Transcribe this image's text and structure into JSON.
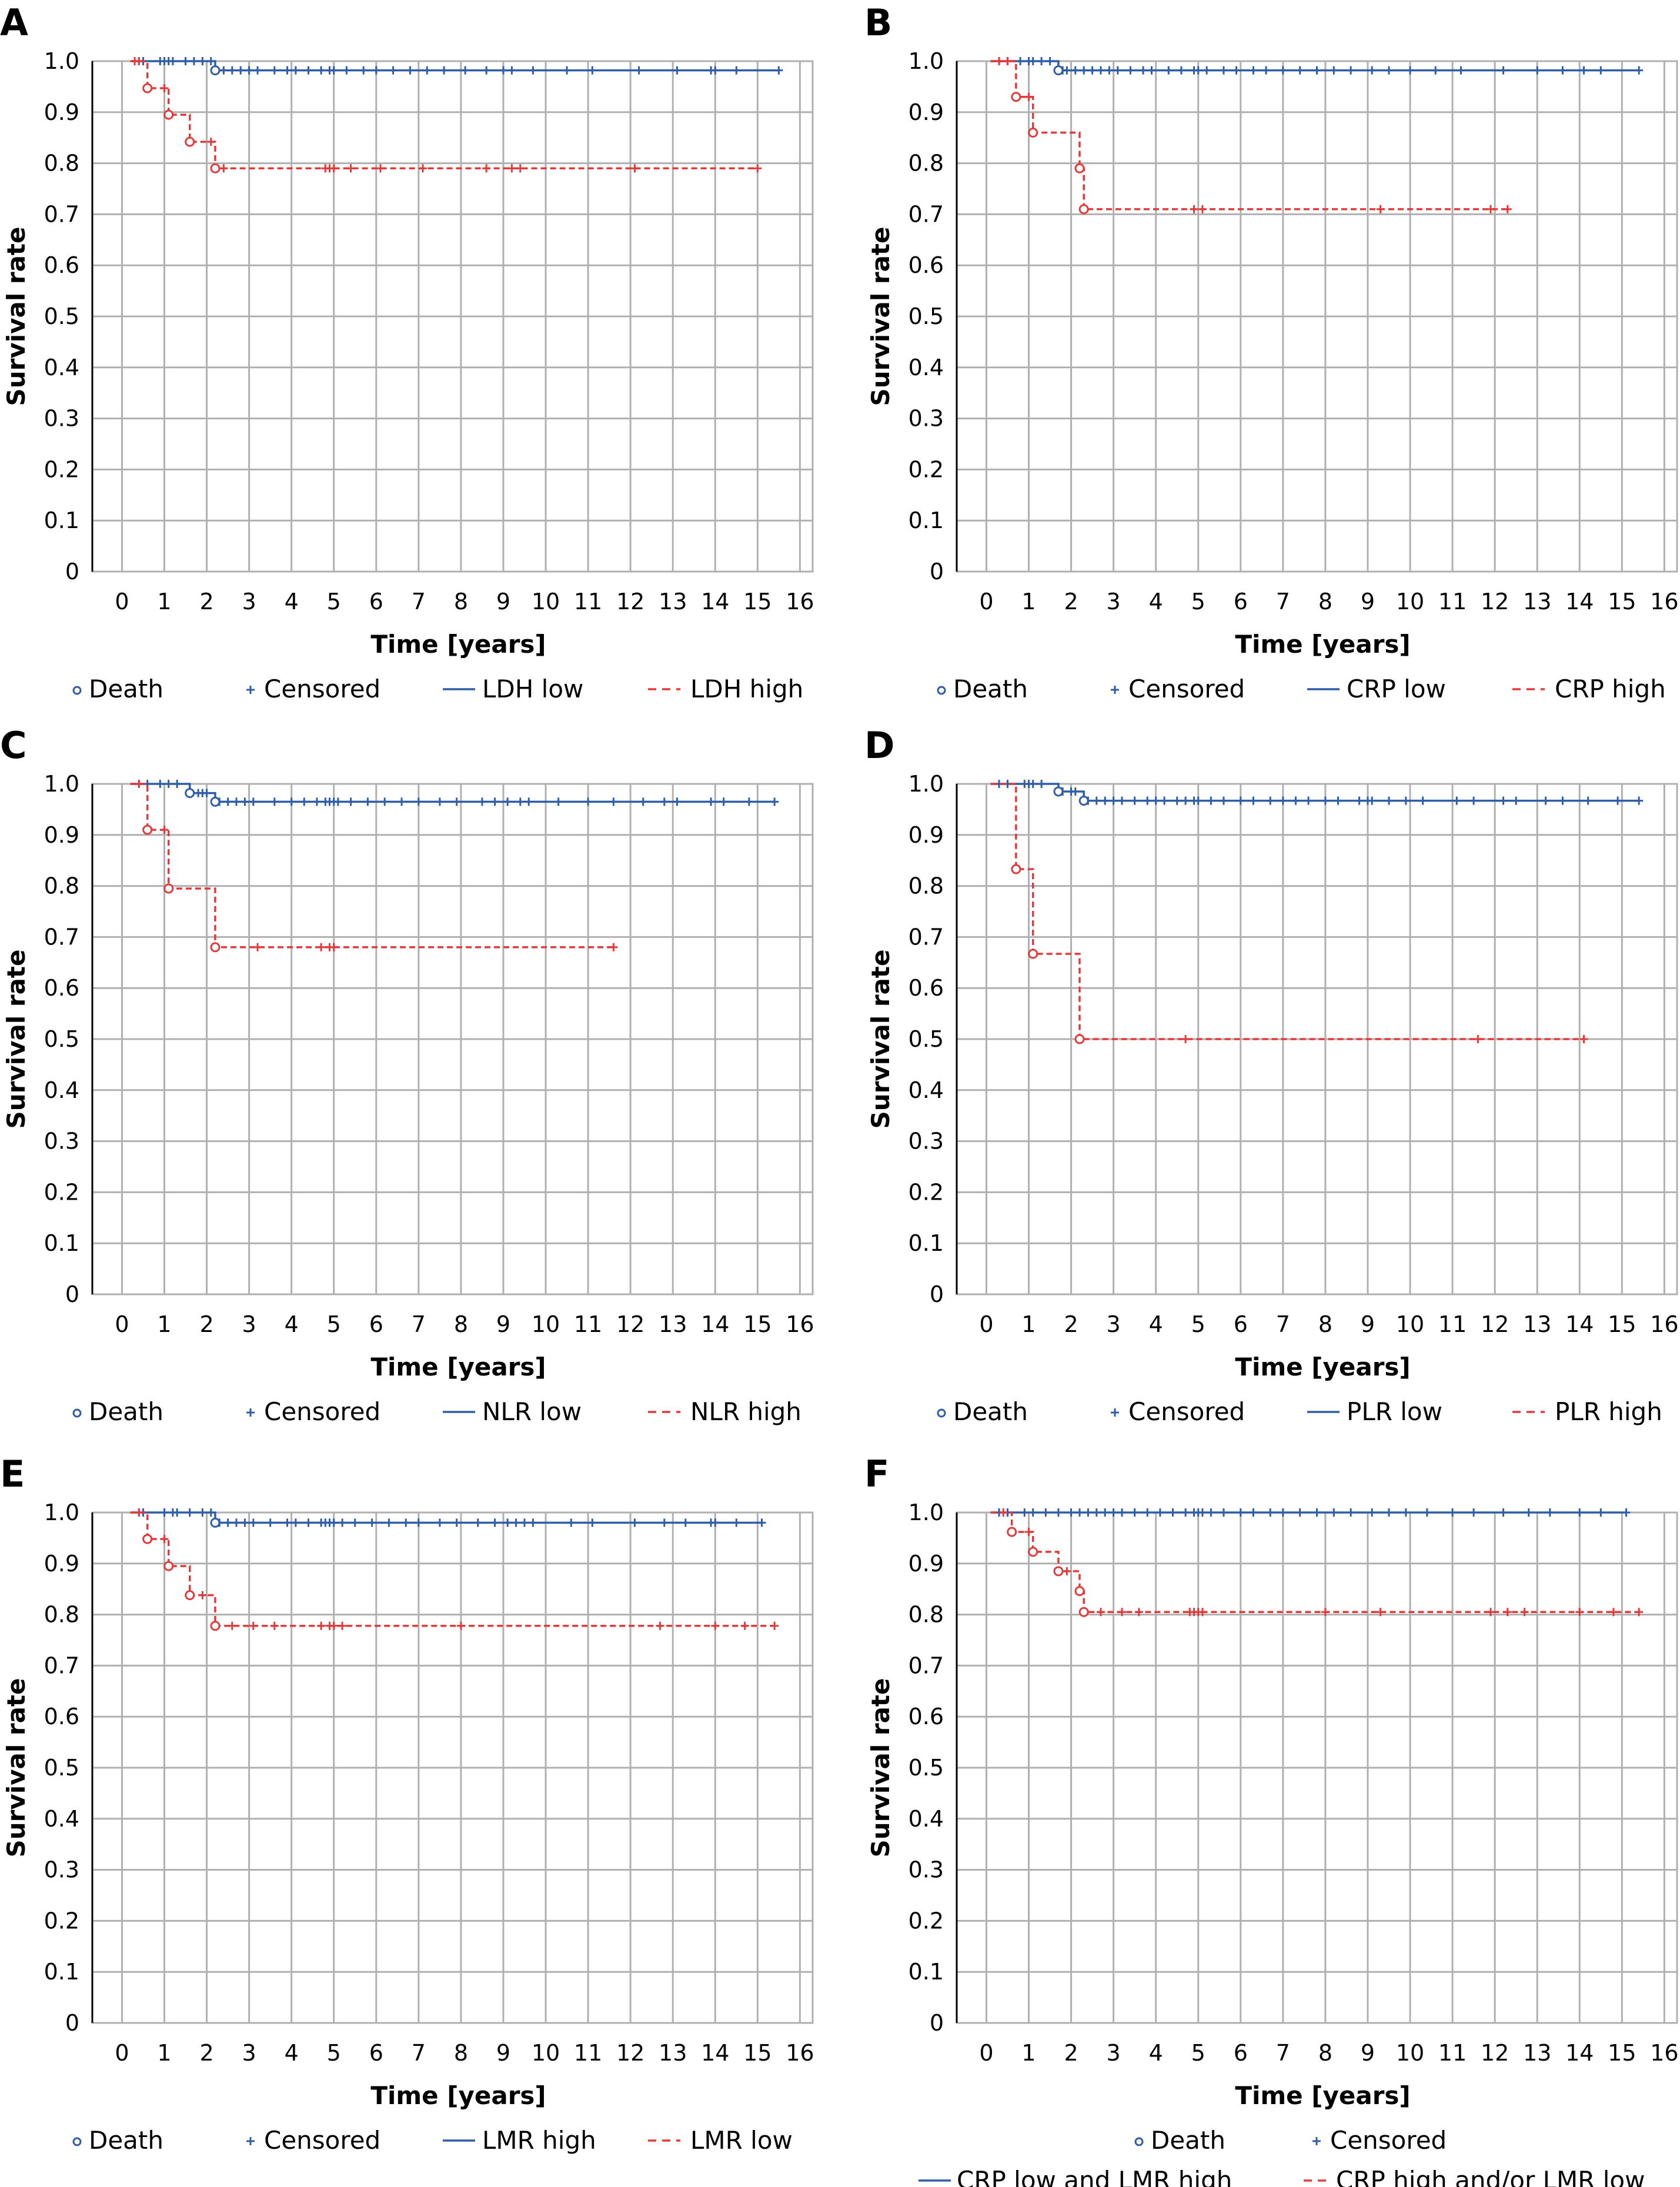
{
  "colors": {
    "grid": "#b0b0b0",
    "axis": "#000000",
    "blue": "#2f5da8",
    "red": "#e23a3a"
  },
  "common": {
    "x_label": "Time [years]",
    "y_label": "Survival rate"
  },
  "chart_data": [
    {
      "type": "line",
      "panel": "A",
      "xlabel": "Time [years]",
      "ylabel": "Survival rate",
      "xlim": [
        -0.7,
        16.3
      ],
      "ylim": [
        0,
        1.0
      ],
      "x_ticks": [
        0,
        1,
        2,
        3,
        4,
        5,
        6,
        7,
        8,
        9,
        10,
        11,
        12,
        13,
        14,
        15,
        16
      ],
      "y_ticks": [
        0,
        0.1,
        0.2,
        0.3,
        0.4,
        0.5,
        0.6,
        0.7,
        0.8,
        0.9,
        1.0
      ],
      "grid": true,
      "legend": {
        "position": "bottom",
        "labels": [
          "Death",
          "Censored",
          "LDH low",
          "LDH high"
        ]
      },
      "series": [
        {
          "name": "LDH low",
          "color": "blue",
          "dash": false,
          "steps": [
            [
              0.2,
              1.0
            ],
            [
              2.2,
              0.982
            ]
          ],
          "end": 15.5,
          "deaths": [
            2.2
          ],
          "censored": [
            0.4,
            0.5,
            0.9,
            1.0,
            1.1,
            1.2,
            1.5,
            1.7,
            1.9,
            2.1,
            2.4,
            2.6,
            2.8,
            3.0,
            3.2,
            3.6,
            3.9,
            4.1,
            4.4,
            4.7,
            4.9,
            5.0,
            5.3,
            5.7,
            6.0,
            6.4,
            6.8,
            7.2,
            7.6,
            8.1,
            8.6,
            9.0,
            9.2,
            9.7,
            10.5,
            11.1,
            12.2,
            13.1,
            13.9,
            14.0,
            14.5,
            15.5
          ]
        },
        {
          "name": "LDH high",
          "color": "red",
          "dash": true,
          "steps": [
            [
              0.2,
              1.0
            ],
            [
              0.6,
              0.947
            ],
            [
              1.1,
              0.895
            ],
            [
              1.6,
              0.842
            ],
            [
              2.2,
              0.79
            ]
          ],
          "end": 15.0,
          "deaths": [
            0.6,
            1.1,
            1.6,
            2.2
          ],
          "censored": [
            0.3,
            0.4,
            1.0,
            2.1,
            2.4,
            4.8,
            4.9,
            5.0,
            5.4,
            6.1,
            7.1,
            8.6,
            9.2,
            9.4,
            12.1,
            15.0
          ]
        }
      ]
    },
    {
      "type": "line",
      "panel": "B",
      "xlabel": "Time [years]",
      "ylabel": "Survival rate",
      "xlim": [
        -0.7,
        16.3
      ],
      "ylim": [
        0,
        1.0
      ],
      "x_ticks": [
        0,
        1,
        2,
        3,
        4,
        5,
        6,
        7,
        8,
        9,
        10,
        11,
        12,
        13,
        14,
        15,
        16
      ],
      "y_ticks": [
        0,
        0.1,
        0.2,
        0.3,
        0.4,
        0.5,
        0.6,
        0.7,
        0.8,
        0.9,
        1.0
      ],
      "grid": true,
      "legend": {
        "position": "bottom",
        "labels": [
          "Death",
          "Censored",
          "CRP low",
          "CRP high"
        ]
      },
      "series": [
        {
          "name": "CRP low",
          "color": "blue",
          "dash": false,
          "steps": [
            [
              0.1,
              1.0
            ],
            [
              1.7,
              0.982
            ]
          ],
          "end": 15.4,
          "deaths": [
            1.7
          ],
          "censored": [
            0.3,
            0.5,
            0.8,
            1.0,
            1.1,
            1.3,
            1.5,
            1.8,
            1.9,
            2.1,
            2.3,
            2.5,
            2.7,
            2.9,
            3.1,
            3.4,
            3.7,
            3.9,
            4.3,
            4.6,
            4.9,
            5.0,
            5.2,
            5.6,
            5.9,
            6.3,
            6.6,
            7.0,
            7.4,
            7.8,
            8.2,
            8.6,
            9.1,
            9.5,
            10.0,
            10.6,
            11.2,
            12.2,
            13.0,
            13.6,
            14.1,
            14.5,
            15.4
          ]
        },
        {
          "name": "CRP high",
          "color": "red",
          "dash": true,
          "steps": [
            [
              0.1,
              1.0
            ],
            [
              0.7,
              0.93
            ],
            [
              1.1,
              0.86
            ],
            [
              2.2,
              0.79
            ],
            [
              2.3,
              0.71
            ]
          ],
          "end": 12.3,
          "deaths": [
            0.7,
            1.1,
            2.2,
            2.3
          ],
          "censored": [
            0.3,
            0.5,
            1.0,
            4.9,
            5.1,
            9.3,
            11.9,
            12.3
          ]
        }
      ]
    },
    {
      "type": "line",
      "panel": "C",
      "xlabel": "Time [years]",
      "ylabel": "Survival rate",
      "xlim": [
        -0.7,
        16.3
      ],
      "ylim": [
        0,
        1.0
      ],
      "x_ticks": [
        0,
        1,
        2,
        3,
        4,
        5,
        6,
        7,
        8,
        9,
        10,
        11,
        12,
        13,
        14,
        15,
        16
      ],
      "y_ticks": [
        0,
        0.1,
        0.2,
        0.3,
        0.4,
        0.5,
        0.6,
        0.7,
        0.8,
        0.9,
        1.0
      ],
      "grid": true,
      "legend": {
        "position": "bottom",
        "labels": [
          "Death",
          "Censored",
          "NLR low",
          "NLR high"
        ]
      },
      "series": [
        {
          "name": "NLR low",
          "color": "blue",
          "dash": false,
          "steps": [
            [
              0.2,
              1.0
            ],
            [
              1.6,
              0.982
            ],
            [
              2.2,
              0.965
            ]
          ],
          "end": 15.4,
          "deaths": [
            1.6,
            2.2
          ],
          "censored": [
            0.4,
            0.6,
            0.9,
            1.1,
            1.3,
            1.8,
            1.9,
            2.0,
            2.3,
            2.5,
            2.7,
            2.9,
            3.1,
            3.6,
            4.0,
            4.3,
            4.6,
            4.8,
            4.9,
            5.0,
            5.1,
            5.4,
            5.8,
            6.2,
            6.6,
            7.0,
            7.5,
            7.9,
            8.5,
            8.8,
            9.1,
            9.4,
            9.6,
            10.3,
            11.0,
            11.6,
            12.3,
            12.8,
            13.1,
            13.9,
            14.2,
            14.8,
            15.4
          ]
        },
        {
          "name": "NLR high",
          "color": "red",
          "dash": true,
          "steps": [
            [
              0.2,
              1.0
            ],
            [
              0.6,
              0.91
            ],
            [
              1.1,
              0.795
            ],
            [
              2.2,
              0.68
            ]
          ],
          "end": 11.6,
          "deaths": [
            0.6,
            1.1,
            2.2
          ],
          "censored": [
            0.4,
            1.0,
            3.2,
            4.7,
            4.9,
            5.0,
            11.6
          ]
        }
      ]
    },
    {
      "type": "line",
      "panel": "D",
      "xlabel": "Time [years]",
      "ylabel": "Survival rate",
      "xlim": [
        -0.7,
        16.3
      ],
      "ylim": [
        0,
        1.0
      ],
      "x_ticks": [
        0,
        1,
        2,
        3,
        4,
        5,
        6,
        7,
        8,
        9,
        10,
        11,
        12,
        13,
        14,
        15,
        16
      ],
      "y_ticks": [
        0,
        0.1,
        0.2,
        0.3,
        0.4,
        0.5,
        0.6,
        0.7,
        0.8,
        0.9,
        1.0
      ],
      "grid": true,
      "legend": {
        "position": "bottom",
        "labels": [
          "Death",
          "Censored",
          "PLR low",
          "PLR high"
        ]
      },
      "series": [
        {
          "name": "PLR low",
          "color": "blue",
          "dash": false,
          "steps": [
            [
              0.1,
              1.0
            ],
            [
              1.7,
              0.985
            ],
            [
              2.3,
              0.967
            ]
          ],
          "end": 15.4,
          "deaths": [
            1.7,
            2.3
          ],
          "censored": [
            0.3,
            0.5,
            0.9,
            1.0,
            1.1,
            1.3,
            1.8,
            2.0,
            2.1,
            2.4,
            2.6,
            2.8,
            3.0,
            3.2,
            3.5,
            3.8,
            4.0,
            4.2,
            4.5,
            4.7,
            4.9,
            5.0,
            5.3,
            5.6,
            6.0,
            6.3,
            6.7,
            7.0,
            7.3,
            7.6,
            8.0,
            8.3,
            8.8,
            9.0,
            9.1,
            9.5,
            9.9,
            10.3,
            11.1,
            11.5,
            12.2,
            12.5,
            13.2,
            13.6,
            14.2,
            14.9,
            15.4
          ]
        },
        {
          "name": "PLR high",
          "color": "red",
          "dash": true,
          "steps": [
            [
              0.1,
              1.0
            ],
            [
              0.7,
              0.833
            ],
            [
              1.1,
              0.667
            ],
            [
              2.2,
              0.5
            ]
          ],
          "end": 14.1,
          "deaths": [
            0.7,
            1.1,
            2.2
          ],
          "censored": [
            4.7,
            11.6,
            14.1
          ]
        }
      ]
    },
    {
      "type": "line",
      "panel": "E",
      "xlabel": "Time [years]",
      "ylabel": "Survival rate",
      "xlim": [
        -0.7,
        16.3
      ],
      "ylim": [
        0,
        1.0
      ],
      "x_ticks": [
        0,
        1,
        2,
        3,
        4,
        5,
        6,
        7,
        8,
        9,
        10,
        11,
        12,
        13,
        14,
        15,
        16
      ],
      "y_ticks": [
        0,
        0.1,
        0.2,
        0.3,
        0.4,
        0.5,
        0.6,
        0.7,
        0.8,
        0.9,
        1.0
      ],
      "grid": true,
      "legend": {
        "position": "bottom",
        "labels": [
          "Death",
          "Censored",
          "LMR high",
          "LMR low"
        ]
      },
      "series": [
        {
          "name": "LMR high",
          "color": "blue",
          "dash": false,
          "steps": [
            [
              0.2,
              1.0
            ],
            [
              2.2,
              0.98
            ]
          ],
          "end": 15.1,
          "deaths": [
            2.2
          ],
          "censored": [
            0.4,
            0.5,
            1.0,
            1.2,
            1.3,
            1.6,
            1.9,
            2.1,
            2.3,
            2.5,
            2.7,
            2.9,
            3.1,
            3.5,
            3.9,
            4.1,
            4.4,
            4.7,
            4.8,
            4.9,
            5.0,
            5.2,
            5.5,
            5.9,
            6.3,
            6.7,
            7.0,
            7.5,
            7.9,
            8.4,
            8.8,
            9.1,
            9.3,
            9.5,
            9.7,
            10.6,
            11.1,
            12.1,
            12.8,
            13.3,
            13.9,
            14.0,
            14.5,
            15.1
          ]
        },
        {
          "name": "LMR low",
          "color": "red",
          "dash": true,
          "steps": [
            [
              0.2,
              1.0
            ],
            [
              0.6,
              0.948
            ],
            [
              1.1,
              0.895
            ],
            [
              1.6,
              0.838
            ],
            [
              2.2,
              0.778
            ]
          ],
          "end": 15.4,
          "deaths": [
            0.6,
            1.1,
            1.6,
            2.2
          ],
          "censored": [
            0.4,
            1.0,
            1.9,
            2.6,
            3.1,
            3.6,
            4.7,
            4.9,
            5.0,
            5.2,
            8.0,
            12.7,
            14.0,
            14.7,
            15.4
          ]
        }
      ]
    },
    {
      "type": "line",
      "panel": "F",
      "xlabel": "Time [years]",
      "ylabel": "Survival rate",
      "xlim": [
        -0.7,
        16.3
      ],
      "ylim": [
        0,
        1.0
      ],
      "x_ticks": [
        0,
        1,
        2,
        3,
        4,
        5,
        6,
        7,
        8,
        9,
        10,
        11,
        12,
        13,
        14,
        15,
        16
      ],
      "y_ticks": [
        0,
        0.1,
        0.2,
        0.3,
        0.4,
        0.5,
        0.6,
        0.7,
        0.8,
        0.9,
        1.0
      ],
      "grid": true,
      "legend": {
        "position": "bottom",
        "labels": [
          "Death",
          "Censored",
          "CRP low and LMR high",
          "CRP high and/or LMR low"
        ]
      },
      "series": [
        {
          "name": "CRP low and LMR high",
          "color": "blue",
          "dash": false,
          "steps": [
            [
              0.1,
              1.0
            ]
          ],
          "end": 15.1,
          "deaths": [],
          "censored": [
            0.3,
            0.5,
            0.9,
            1.1,
            1.4,
            1.7,
            2.0,
            2.2,
            2.4,
            2.6,
            2.8,
            3.0,
            3.2,
            3.5,
            3.8,
            4.1,
            4.4,
            4.7,
            4.9,
            5.0,
            5.1,
            5.3,
            5.6,
            6.0,
            6.3,
            6.7,
            7.0,
            7.4,
            7.8,
            8.2,
            8.6,
            9.1,
            9.5,
            9.9,
            10.4,
            11.0,
            11.5,
            12.2,
            12.8,
            13.3,
            14.0,
            14.5,
            15.1
          ]
        },
        {
          "name": "CRP high and/or LMR low",
          "color": "red",
          "dash": true,
          "steps": [
            [
              0.1,
              1.0
            ],
            [
              0.6,
              0.962
            ],
            [
              1.1,
              0.923
            ],
            [
              1.7,
              0.885
            ],
            [
              2.2,
              0.846
            ],
            [
              2.3,
              0.805
            ]
          ],
          "end": 15.4,
          "deaths": [
            0.6,
            1.1,
            1.7,
            2.2,
            2.3
          ],
          "censored": [
            0.4,
            1.0,
            1.9,
            2.7,
            3.2,
            3.6,
            4.8,
            4.9,
            5.0,
            5.1,
            8.0,
            9.3,
            11.9,
            12.3,
            12.7,
            14.0,
            14.8,
            15.4
          ]
        }
      ]
    }
  ]
}
